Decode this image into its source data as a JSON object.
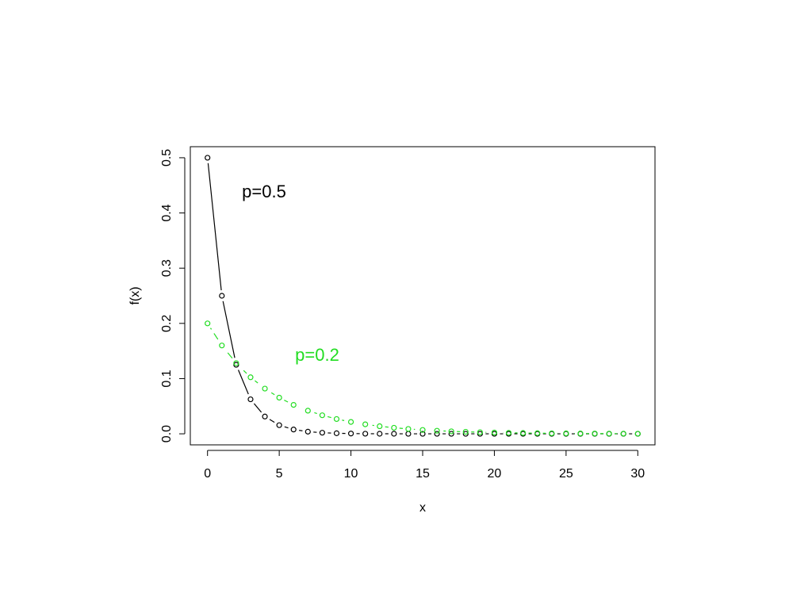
{
  "chart_data": {
    "type": "line",
    "x_label": "x",
    "y_label": "f(x)",
    "x": [
      0,
      1,
      2,
      3,
      4,
      5,
      6,
      7,
      8,
      9,
      10,
      11,
      12,
      13,
      14,
      15,
      16,
      17,
      18,
      19,
      20,
      21,
      22,
      23,
      24,
      25,
      26,
      27,
      28,
      29,
      30
    ],
    "series": [
      {
        "name": "p=0.5",
        "color": "#000000",
        "dash": false,
        "values": [
          0.5,
          0.25,
          0.125,
          0.0625,
          0.0313,
          0.0156,
          0.0078,
          0.0039,
          0.002,
          0.001,
          0.0005,
          0.0002,
          0.0001,
          0.0001,
          0,
          0,
          0,
          0,
          0,
          0,
          0,
          0,
          0,
          0,
          0,
          0,
          0,
          0,
          0,
          0,
          0
        ]
      },
      {
        "name": "p=0.2",
        "color": "#22dd22",
        "dash": true,
        "values": [
          0.2,
          0.16,
          0.128,
          0.1024,
          0.0819,
          0.0655,
          0.0524,
          0.0419,
          0.0336,
          0.0268,
          0.0215,
          0.0172,
          0.0137,
          0.011,
          0.0088,
          0.007,
          0.0056,
          0.0045,
          0.0036,
          0.0029,
          0.0023,
          0.0018,
          0.0015,
          0.0012,
          0.0009,
          0.0008,
          0.0006,
          0.0005,
          0.0004,
          0.0003,
          0.0002
        ]
      }
    ],
    "xlim": [
      -1.2,
      31.2
    ],
    "xticks": [
      0,
      5,
      10,
      15,
      20,
      25,
      30
    ],
    "ylim": [
      -0.02,
      0.52
    ],
    "yticks": [
      {
        "value": 0,
        "label": "0.0"
      },
      0.1,
      0.2,
      0.3,
      0.4,
      0.5
    ]
  }
}
